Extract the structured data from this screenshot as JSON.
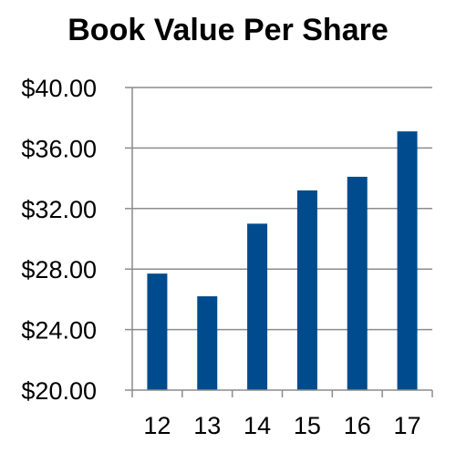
{
  "chart_data": {
    "type": "bar",
    "title": "Book Value Per Share",
    "xlabel": "",
    "ylabel": "",
    "categories": [
      "12",
      "13",
      "14",
      "15",
      "16",
      "17"
    ],
    "values": [
      27.7,
      26.2,
      31.0,
      33.2,
      34.1,
      37.1
    ],
    "ylim": [
      20,
      40
    ],
    "yticks": [
      20,
      24,
      28,
      32,
      36,
      40
    ],
    "ytick_labels": [
      "$20.00",
      "$24.00",
      "$28.00",
      "$32.00",
      "$36.00",
      "$40.00"
    ],
    "grid": true,
    "legend": "none",
    "bar_color": "#004b8d",
    "grid_color": "#8c8c8c"
  }
}
